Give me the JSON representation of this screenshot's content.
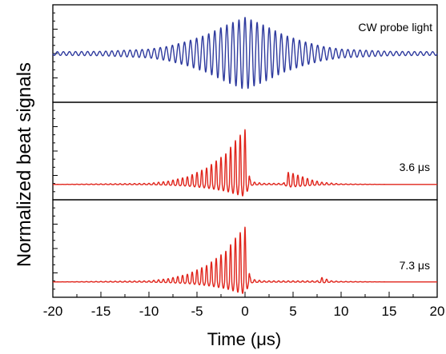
{
  "chart_data": {
    "type": "line",
    "ylabel": "Normalized beat signals",
    "xlabel": "Time (μs)",
    "xlim": [
      -20,
      20
    ],
    "x_ticks": [
      -20,
      -15,
      -10,
      -5,
      0,
      5,
      10,
      15,
      20
    ],
    "x_tick_labels": [
      "-20",
      "-15",
      "-10",
      "-5",
      "0",
      "5",
      "10",
      "15",
      "20"
    ],
    "x_minor_step": 2.5,
    "grid": false,
    "panels": [
      {
        "label": "CW probe light",
        "color": "#2e3a9e",
        "shape": "symmetric",
        "baseline": 0,
        "ylim": [
          -1.35,
          1.35
        ],
        "oscillation_period_us": 0.63,
        "series": {
          "x": [
            -20,
            -15,
            -10,
            -8,
            -6,
            -4,
            -2,
            0,
            2,
            4,
            6,
            8,
            10,
            15,
            20
          ],
          "envelope": [
            0.05,
            0.06,
            0.12,
            0.2,
            0.34,
            0.52,
            0.78,
            1.0,
            0.78,
            0.52,
            0.34,
            0.2,
            0.12,
            0.06,
            0.05
          ]
        }
      },
      {
        "label": "3.6 μs",
        "color": "#e0241b",
        "shape": "asymmetric",
        "baseline": 0,
        "ylim": [
          -0.28,
          1.5
        ],
        "oscillation_period_us": 0.5,
        "series": {
          "x": [
            -20,
            -10,
            -8,
            -6,
            -4,
            -2,
            -1,
            0,
            0.5,
            1,
            2,
            4,
            4.5,
            5,
            6,
            7,
            8,
            10,
            15,
            20
          ],
          "envelope": [
            0.0,
            0.02,
            0.06,
            0.14,
            0.3,
            0.56,
            0.8,
            1.0,
            0.1,
            0.04,
            0.02,
            0.02,
            0.22,
            0.2,
            0.14,
            0.08,
            0.04,
            0.01,
            0.0,
            0.0
          ]
        }
      },
      {
        "label": "7.3 μs",
        "color": "#e0241b",
        "shape": "asymmetric",
        "baseline": 0,
        "ylim": [
          -0.28,
          1.5
        ],
        "oscillation_period_us": 0.5,
        "series": {
          "x": [
            -20,
            -10,
            -8,
            -6,
            -4,
            -2,
            -1,
            0,
            0.5,
            1,
            2,
            7.5,
            8,
            8.5,
            9,
            10,
            15,
            20
          ],
          "envelope": [
            0.0,
            0.02,
            0.06,
            0.14,
            0.3,
            0.56,
            0.8,
            1.0,
            0.1,
            0.04,
            0.02,
            0.02,
            0.08,
            0.05,
            0.02,
            0.01,
            0.0,
            0.0
          ]
        }
      }
    ]
  }
}
